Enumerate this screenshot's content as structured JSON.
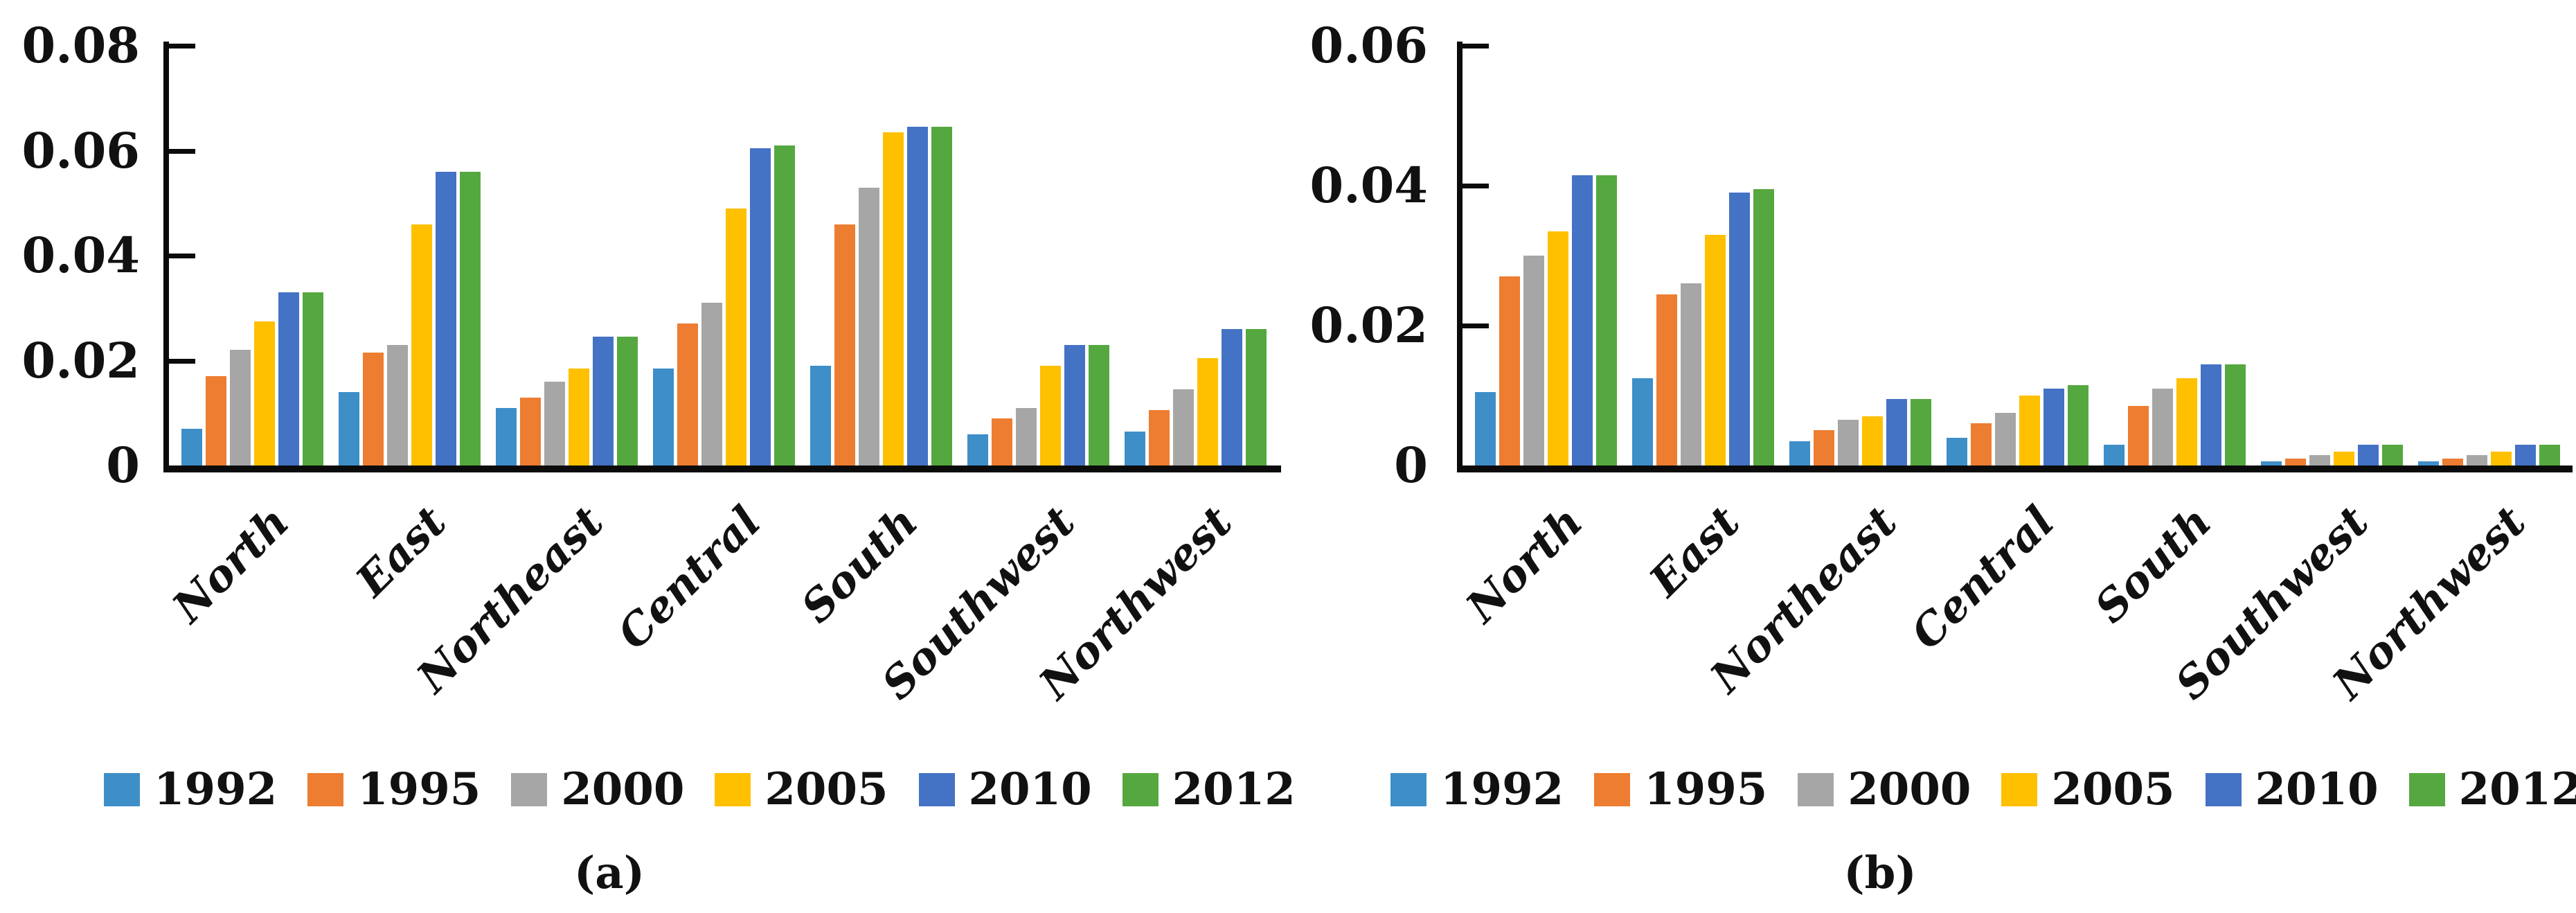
{
  "figure": {
    "description": "Two grouped bar chart panels comparing regional values across six years",
    "captions": {
      "a": "(a)",
      "b": "(b)"
    }
  },
  "chart_data": [
    {
      "type": "bar",
      "panel": "a",
      "caption": "(a)",
      "categories": [
        "North",
        "East",
        "Northeast",
        "Central",
        "South",
        "Southwest",
        "Northwest"
      ],
      "series": [
        {
          "name": "1992",
          "color": "#3E8EC8",
          "values": [
            0.007,
            0.014,
            0.011,
            0.0185,
            0.019,
            0.006,
            0.0065
          ]
        },
        {
          "name": "1995",
          "color": "#ED7D31",
          "values": [
            0.017,
            0.0215,
            0.013,
            0.027,
            0.046,
            0.009,
            0.0105
          ]
        },
        {
          "name": "2000",
          "color": "#A6A6A6",
          "values": [
            0.022,
            0.023,
            0.016,
            0.031,
            0.053,
            0.011,
            0.0145
          ]
        },
        {
          "name": "2005",
          "color": "#FFC000",
          "values": [
            0.0275,
            0.046,
            0.0185,
            0.049,
            0.0635,
            0.019,
            0.0205
          ]
        },
        {
          "name": "2010",
          "color": "#4472C4",
          "values": [
            0.033,
            0.056,
            0.0245,
            0.0605,
            0.0645,
            0.023,
            0.026
          ]
        },
        {
          "name": "2012",
          "color": "#55A83F",
          "values": [
            0.033,
            0.056,
            0.0245,
            0.061,
            0.0645,
            0.023,
            0.026
          ]
        }
      ],
      "ylim": [
        0,
        0.08
      ],
      "y_ticks": [
        0.08,
        0.06,
        0.04,
        0.02,
        0
      ],
      "y_tick_labels": [
        "0.08",
        "0.06",
        "0.04",
        "0.02",
        "0"
      ],
      "xlabel": "",
      "ylabel": "",
      "grid": false,
      "legend_position": "bottom"
    },
    {
      "type": "bar",
      "panel": "b",
      "caption": "(b)",
      "categories": [
        "North",
        "East",
        "Northeast",
        "Central",
        "South",
        "Southwest",
        "Northwest"
      ],
      "series": [
        {
          "name": "1992",
          "color": "#3E8EC8",
          "values": [
            0.0105,
            0.0125,
            0.0035,
            0.004,
            0.003,
            0.0006,
            0.0006
          ]
        },
        {
          "name": "1995",
          "color": "#ED7D31",
          "values": [
            0.027,
            0.0245,
            0.005,
            0.006,
            0.0085,
            0.001,
            0.001
          ]
        },
        {
          "name": "2000",
          "color": "#A6A6A6",
          "values": [
            0.03,
            0.026,
            0.0065,
            0.0075,
            0.011,
            0.0015,
            0.0015
          ]
        },
        {
          "name": "2005",
          "color": "#FFC000",
          "values": [
            0.0335,
            0.033,
            0.007,
            0.01,
            0.0125,
            0.002,
            0.002
          ]
        },
        {
          "name": "2010",
          "color": "#4472C4",
          "values": [
            0.0415,
            0.039,
            0.0095,
            0.011,
            0.0145,
            0.003,
            0.003
          ]
        },
        {
          "name": "2012",
          "color": "#55A83F",
          "values": [
            0.0415,
            0.0395,
            0.0095,
            0.0115,
            0.0145,
            0.003,
            0.003
          ]
        }
      ],
      "ylim": [
        0,
        0.06
      ],
      "y_ticks": [
        0.06,
        0.04,
        0.02,
        0
      ],
      "y_tick_labels": [
        "0.06",
        "0.04",
        "0.02",
        "0"
      ],
      "xlabel": "",
      "ylabel": "",
      "grid": false,
      "legend_position": "bottom"
    }
  ]
}
